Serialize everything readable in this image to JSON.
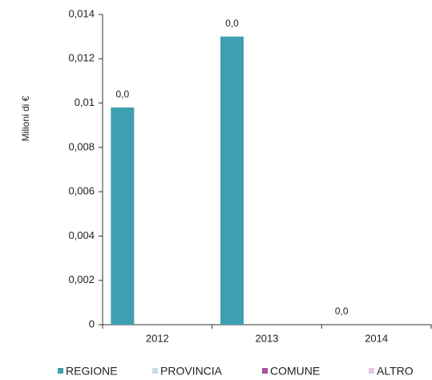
{
  "chart_data": {
    "type": "bar",
    "y_label": "Milioni di €",
    "categories": [
      "2012",
      "2013",
      "2014"
    ],
    "series": [
      {
        "name": "REGIONE",
        "color": "#3e9fb0",
        "values": [
          0.0098,
          0.013,
          0
        ],
        "value_labels": [
          "0,0",
          "0,0",
          "0,0"
        ]
      },
      {
        "name": "PROVINCIA",
        "color": "#c2dde6",
        "values": [
          0,
          0,
          0
        ]
      },
      {
        "name": "COMUNE",
        "color": "#a6539e",
        "values": [
          0,
          0,
          0
        ]
      },
      {
        "name": "ALTRO",
        "color": "#e8c6e6",
        "values": [
          0,
          0,
          0
        ]
      }
    ],
    "ylim": [
      0,
      0.014
    ],
    "yticks": [
      0,
      {
        "value": 0.002,
        "label": "0,002"
      },
      {
        "value": 0.004,
        "label": "0,004"
      },
      {
        "value": 0.006,
        "label": "0,006"
      },
      {
        "value": 0.008,
        "label": "0,008"
      },
      {
        "value": 0.01,
        "label": "0,01"
      },
      {
        "value": 0.012,
        "label": "0,012"
      },
      {
        "value": 0.014,
        "label": "0,014"
      }
    ],
    "grid": false,
    "legend": "bottom"
  }
}
